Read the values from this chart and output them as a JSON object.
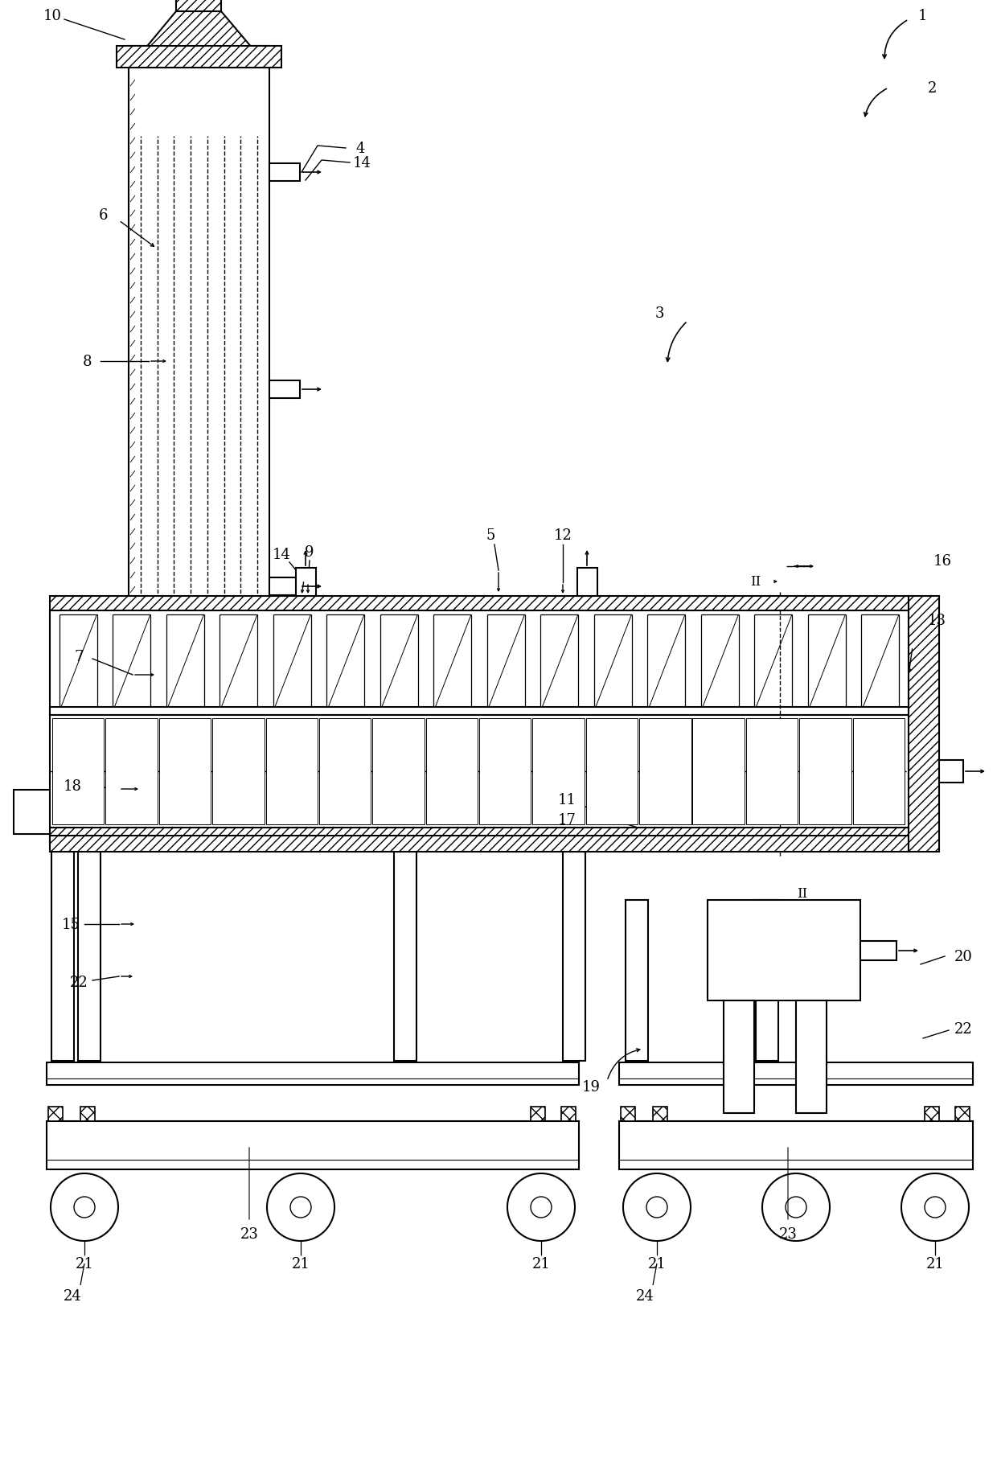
{
  "bg_color": "#ffffff",
  "line_color": "#000000",
  "lw": 1.5,
  "fs": 13
}
